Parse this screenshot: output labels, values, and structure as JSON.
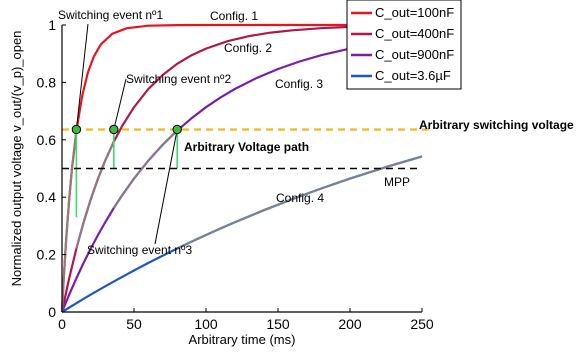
{
  "chart_data": {
    "type": "line",
    "xlabel": "Arbitrary time (ms)",
    "ylabel": "Normalized output voltage v_out/(v_p)_open",
    "xlim": [
      0,
      250
    ],
    "ylim": [
      0,
      1
    ],
    "xticks": [
      "0",
      "50",
      "100",
      "150",
      "200",
      "250"
    ],
    "yticks": [
      "0",
      "0.2",
      "0.4",
      "0.6",
      "0.8",
      "1"
    ],
    "legend_position": "top-right",
    "legend": [
      {
        "label": "C_out=100nF",
        "color": "#e8141b",
        "series": "config1"
      },
      {
        "label": "C_out=400nF",
        "color": "#b0174f",
        "series": "config2"
      },
      {
        "label": "C_out=900nF",
        "color": "#7b1fa2",
        "series": "config3"
      },
      {
        "label": "C_out=3.6µF",
        "color": "#1f56c0",
        "series": "config4"
      }
    ],
    "series": [
      {
        "key": "config1",
        "name": "Config. 1",
        "color": "#e8141b",
        "tau": 10,
        "x": [
          0,
          1,
          2,
          3,
          5,
          7,
          10,
          14,
          18,
          22,
          27,
          35,
          45,
          60,
          80,
          100,
          130,
          160,
          200,
          225,
          250
        ]
      },
      {
        "key": "config2",
        "name": "Config. 2",
        "color": "#b0174f",
        "tau": 40,
        "x": [
          0,
          2,
          5,
          10,
          15,
          20,
          25,
          30,
          36,
          42,
          50,
          60,
          70,
          80,
          90,
          100,
          115,
          130,
          145,
          160,
          180,
          200,
          225,
          250
        ]
      },
      {
        "key": "config3",
        "name": "Config. 3",
        "color": "#7b1fa2",
        "tau": 80,
        "x": [
          0,
          5,
          10,
          15,
          20,
          25,
          30,
          36,
          42,
          50,
          60,
          70,
          80,
          90,
          100,
          110,
          120,
          135,
          150,
          165,
          180,
          200,
          225,
          250
        ]
      },
      {
        "key": "config4",
        "name": "Config. 4",
        "color": "#1f56c0",
        "tau": 320,
        "x": [
          0,
          10,
          20,
          30,
          40,
          50,
          60,
          70,
          80,
          90,
          100,
          110,
          120,
          140,
          160,
          180,
          200,
          225,
          250
        ]
      }
    ],
    "switching_path": {
      "name": "Arbitrary Voltage path",
      "color": "#3ddb6a",
      "segments": [
        {
          "series": "config1",
          "x0": 0,
          "x1": 10
        },
        {
          "series": "config2",
          "x0": 10,
          "x1": 36
        },
        {
          "series": "config3",
          "x0": 36,
          "x1": 80
        },
        {
          "series": "config4",
          "x0": 80,
          "x1": 250
        }
      ]
    },
    "drop_lines": [
      {
        "x": 10,
        "from": 0.636,
        "to": 0.33
      },
      {
        "x": 36,
        "from": 0.636,
        "to": 0.5
      },
      {
        "x": 80,
        "from": 0.636,
        "to": 0.5
      }
    ],
    "switching_events": [
      {
        "label": "Switching event nº1",
        "x": 10,
        "y": 0.636
      },
      {
        "label": "Switching event nº2",
        "x": 36,
        "y": 0.636
      },
      {
        "label": "Switching event nº3",
        "x": 80,
        "y": 0.636
      }
    ],
    "reference_lines": [
      {
        "label": "Arbitrary switching voltage",
        "y": 0.636,
        "color": "#f0bb1a",
        "style": "dashed"
      },
      {
        "label": "MPP",
        "y": 0.5,
        "color": "#000000",
        "style": "dashed"
      }
    ],
    "annotations": [
      {
        "text": "Config. 1",
        "color": "#e8141b"
      },
      {
        "text": "Config. 2",
        "color": "#b0174f"
      },
      {
        "text": "Config. 3",
        "color": "#7b1fa2"
      },
      {
        "text": "Config. 4",
        "color": "#1f56c0"
      },
      {
        "text": "Arbitrary Voltage path",
        "color": "#3ddb6a"
      },
      {
        "text": "Arbitrary switching voltage",
        "color": "#f0bb1a"
      },
      {
        "text": "MPP",
        "color": "#000000"
      }
    ]
  }
}
